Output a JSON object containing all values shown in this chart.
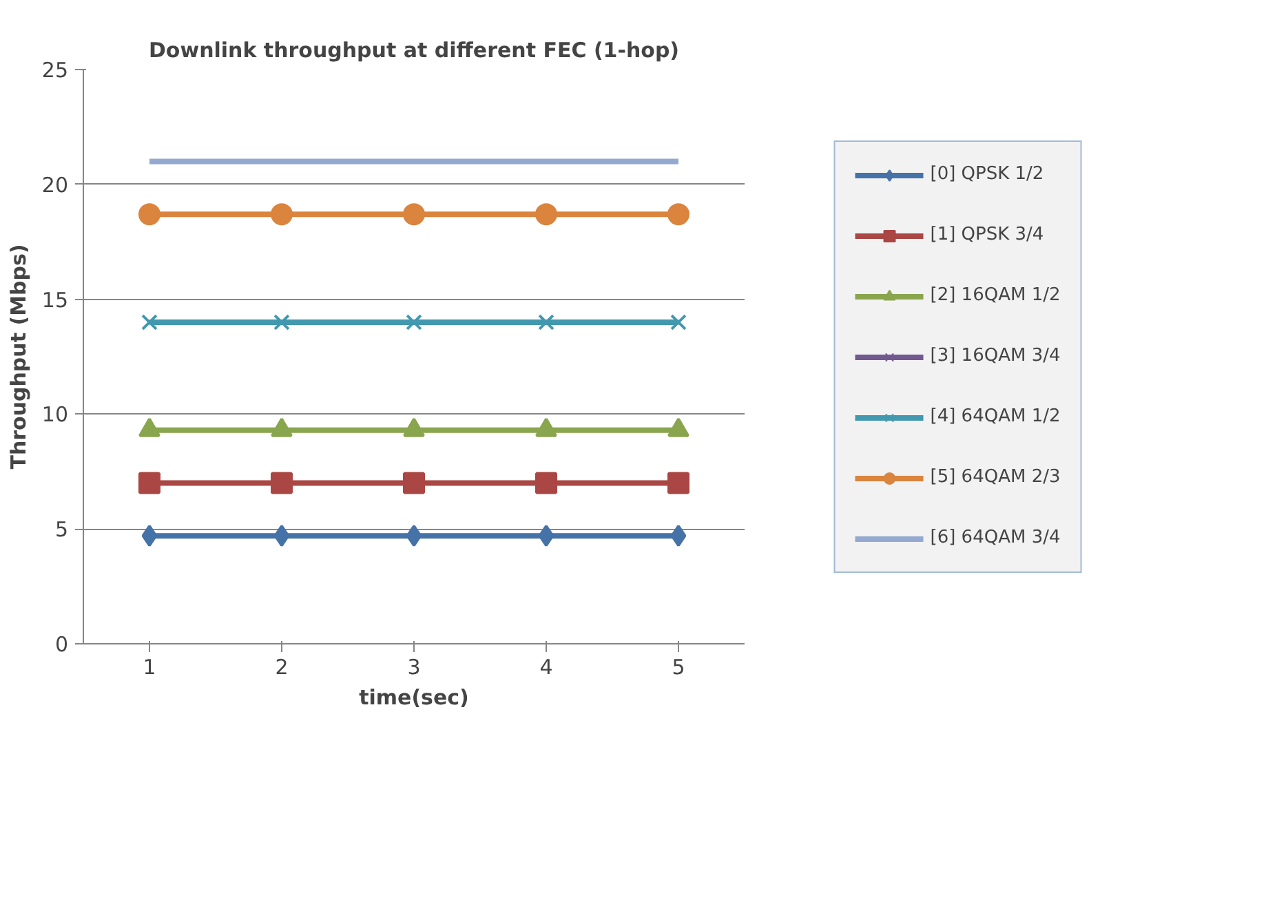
{
  "chart_data": {
    "type": "line",
    "title": "Downlink throughput at different FEC (1-hop)",
    "xlabel": "time(sec)",
    "ylabel": "Throughput (Mbps)",
    "x": [
      1,
      2,
      3,
      4,
      5
    ],
    "xlim": [
      0.5,
      5.5
    ],
    "xticks": [
      1,
      2,
      3,
      4,
      5
    ],
    "ylim": [
      0,
      25
    ],
    "yticks": [
      0,
      5,
      10,
      15,
      20,
      25
    ],
    "grid": "y",
    "legend": "right",
    "series": [
      {
        "name": "[0] QPSK 1/2",
        "color": "#4572a7",
        "marker": "diamond",
        "values": [
          4.7,
          4.7,
          4.7,
          4.7,
          4.7
        ]
      },
      {
        "name": "[1] QPSK 3/4",
        "color": "#aa4643",
        "marker": "square",
        "values": [
          7.0,
          7.0,
          7.0,
          7.0,
          7.0
        ]
      },
      {
        "name": "[2] 16QAM 1/2",
        "color": "#89a54e",
        "marker": "triangle",
        "values": [
          9.3,
          9.3,
          9.3,
          9.3,
          9.3
        ]
      },
      {
        "name": "[3] 16QAM 3/4",
        "color": "#71588f",
        "marker": "cross",
        "values": [
          null,
          null,
          null,
          null,
          null
        ]
      },
      {
        "name": "[4] 64QAM 1/2",
        "color": "#4198af",
        "marker": "cross",
        "values": [
          14.0,
          14.0,
          14.0,
          14.0,
          14.0
        ]
      },
      {
        "name": "[5] 64QAM 2/3",
        "color": "#db843d",
        "marker": "circle",
        "values": [
          18.7,
          18.7,
          18.7,
          18.7,
          18.7
        ]
      },
      {
        "name": "[6] 64QAM 3/4",
        "color": "#93a9cf",
        "marker": "none",
        "values": [
          21.0,
          21.0,
          21.0,
          21.0,
          21.0
        ]
      }
    ]
  }
}
